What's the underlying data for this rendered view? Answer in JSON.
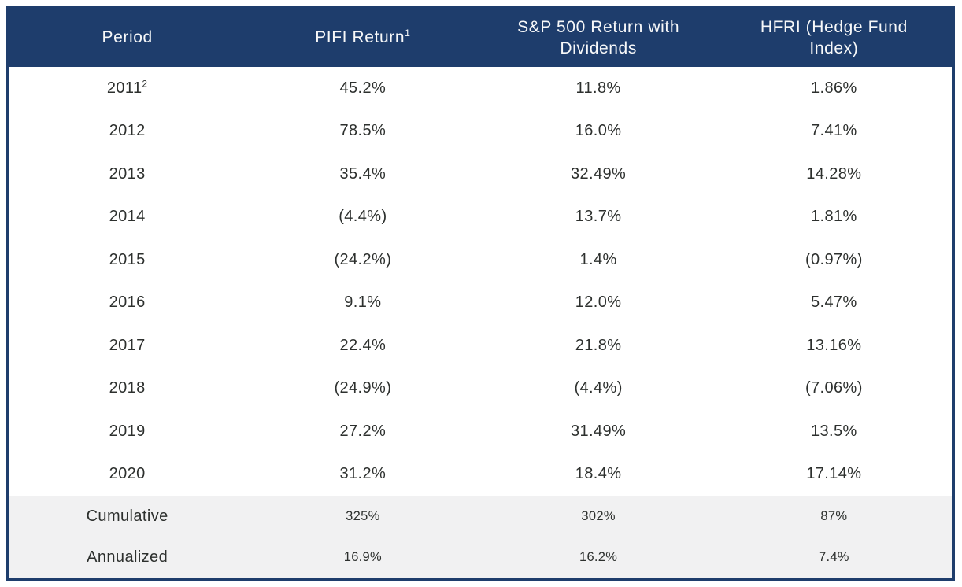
{
  "colors": {
    "header_bg": "#1e3d6c",
    "header_text": "#f7f8f9",
    "body_text": "#2d302e",
    "summary_bg": "#f1f1f2",
    "border": "#1e3d6c",
    "row_bg": "#ffffff"
  },
  "chart_data": {
    "type": "table",
    "columns": [
      "Period",
      "PIFI Return¹",
      "S&P 500 Return with Dividends",
      "HFRI (Hedge Fund Index)"
    ],
    "rows": [
      [
        "2011²",
        "45.2%",
        "11.8%",
        "1.86%"
      ],
      [
        "2012",
        "78.5%",
        "16.0%",
        "7.41%"
      ],
      [
        "2013",
        "35.4%",
        "32.49%",
        "14.28%"
      ],
      [
        "2014",
        "(4.4%)",
        "13.7%",
        "1.81%"
      ],
      [
        "2015",
        "(24.2%)",
        "1.4%",
        "(0.97%)"
      ],
      [
        "2016",
        "9.1%",
        "12.0%",
        "5.47%"
      ],
      [
        "2017",
        "22.4%",
        "21.8%",
        "13.16%"
      ],
      [
        "2018",
        "(24.9%)",
        "(4.4%)",
        "(7.06%)"
      ],
      [
        "2019",
        "27.2%",
        "31.49%",
        "13.5%"
      ],
      [
        "2020",
        "31.2%",
        "18.4%",
        "17.14%"
      ]
    ],
    "summary_rows": [
      [
        "Cumulative",
        "325%",
        "302%",
        "87%"
      ],
      [
        "Annualized",
        "16.9%",
        "16.2%",
        "7.4%"
      ]
    ],
    "layout": {
      "header_position": "top",
      "grid": "off",
      "summary_shaded": true
    }
  },
  "table": {
    "header": [
      {
        "label": "Period",
        "sup": ""
      },
      {
        "label": "PIFI Return",
        "sup": "1"
      },
      {
        "label": "S&P 500 Return with Dividends",
        "sup": ""
      },
      {
        "label": "HFRI (Hedge Fund Index)",
        "sup": ""
      }
    ],
    "rows": [
      {
        "period": "2011",
        "period_sup": "2",
        "values": [
          "45.2%",
          "11.8%",
          "1.86%"
        ]
      },
      {
        "period": "2012",
        "period_sup": "",
        "values": [
          "78.5%",
          "16.0%",
          "7.41%"
        ]
      },
      {
        "period": "2013",
        "period_sup": "",
        "values": [
          "35.4%",
          "32.49%",
          "14.28%"
        ]
      },
      {
        "period": "2014",
        "period_sup": "",
        "values": [
          "(4.4%)",
          "13.7%",
          "1.81%"
        ]
      },
      {
        "period": "2015",
        "period_sup": "",
        "values": [
          "(24.2%)",
          "1.4%",
          "(0.97%)"
        ]
      },
      {
        "period": "2016",
        "period_sup": "",
        "values": [
          "9.1%",
          "12.0%",
          "5.47%"
        ]
      },
      {
        "period": "2017",
        "period_sup": "",
        "values": [
          "22.4%",
          "21.8%",
          "13.16%"
        ]
      },
      {
        "period": "2018",
        "period_sup": "",
        "values": [
          "(24.9%)",
          "(4.4%)",
          "(7.06%)"
        ]
      },
      {
        "period": "2019",
        "period_sup": "",
        "values": [
          "27.2%",
          "31.49%",
          "13.5%"
        ]
      },
      {
        "period": "2020",
        "period_sup": "",
        "values": [
          "31.2%",
          "18.4%",
          "17.14%"
        ]
      }
    ],
    "summary_rows": [
      {
        "label": "Cumulative",
        "values": [
          "325%",
          "302%",
          "87%"
        ]
      },
      {
        "label": "Annualized",
        "values": [
          "16.9%",
          "16.2%",
          "7.4%"
        ]
      }
    ]
  }
}
